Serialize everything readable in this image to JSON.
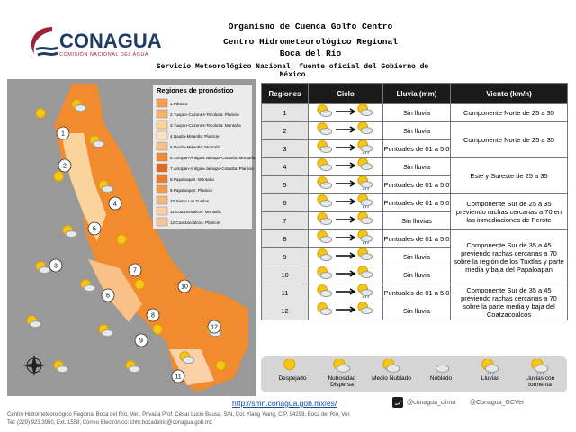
{
  "header": {
    "logo": "CONAGUA",
    "logo_subtitle": "COMISIÓN NACIONAL DEL AGUA",
    "org": "Organismo de Cuenca Golfo Centro",
    "center": "Centro Hidrometeorológico Regional",
    "place": "Boca del Río",
    "service": "Servicio Meteorológico Nacional, fuente oficial del Gobierno de México"
  },
  "map": {
    "legend_title": "Regiones de pronóstico",
    "legend": [
      {
        "label": "1.Pánuco",
        "color": "#f6a04d"
      },
      {
        "label": "2.Tuxpan-Cazones-Tecolutla: Planicie",
        "color": "#f8b36a"
      },
      {
        "label": "3.Tuxpan-Cazones-Tecolutla: Montaña",
        "color": "#fbd39c"
      },
      {
        "label": "4.Nautla-Misantla: Planicie",
        "color": "#fde3c0"
      },
      {
        "label": "5.Nautla-Misantla: Montaña",
        "color": "#f9c088"
      },
      {
        "label": "6.Actopan-Antigua-Jamapa-Cotaxtla: Montaña",
        "color": "#f28a2e"
      },
      {
        "label": "7.Actopan-Antigua-Jamapa-Cotaxtla: Planicie",
        "color": "#e8661c"
      },
      {
        "label": "8.Papaloapan: Montaña",
        "color": "#f07d2a"
      },
      {
        "label": "9.Papaloapan: Planicie",
        "color": "#f39a4a"
      },
      {
        "label": "10.Sierra Los Tuxtlas",
        "color": "#f6b77e"
      },
      {
        "label": "11.Coatzacoalcos: Montaña",
        "color": "#fcd0a8"
      },
      {
        "label": "12.Coatzacoalcos: Planicie",
        "color": "#fbc49a"
      }
    ],
    "markers": [
      "1",
      "2",
      "3",
      "4",
      "5",
      "6",
      "7",
      "8",
      "9",
      "10",
      "11",
      "12"
    ]
  },
  "table": {
    "headers": [
      "Regiones",
      "Cielo",
      "Lluvia (mm)",
      "Viento (km/h)"
    ],
    "rows": [
      [
        "1",
        "Sin lluvia",
        "Componente Norte de 25 a 35"
      ],
      [
        "2",
        "Sin lluvia",
        "Componente Norte de 25 a 35"
      ],
      [
        "3",
        "Puntuales de 01 a 5.0",
        null
      ],
      [
        "4",
        "Sin lluvia",
        "Este y Sureste de 25 a 35"
      ],
      [
        "5",
        "Puntuales de 01 a 5.0",
        null
      ],
      [
        "6",
        "Puntuales de 01 a 5.0",
        "Componente Sur de 25 a 35 previendo rachas cercanas a 70 en las inmediaciones de Perote"
      ],
      [
        "7",
        "Sin lluvias",
        null
      ],
      [
        "8",
        "Puntuales de 01 a 5.0",
        "Componente Sur de 35 a 45 previendo rachas cercanas a 70 sobre la región de los Tuxtlas y parte media y baja del Papaloapan"
      ],
      [
        "9",
        "Sin lluvia",
        null
      ],
      [
        "10",
        "Sin lluvia",
        null
      ],
      [
        "11",
        "Puntuales de 01 a 5.0",
        "Componente Sur de 35 a 45 previendo rachas cercanas a 70 sobre la parte media y baja del Coatzacoalcos"
      ],
      [
        "12",
        "Sin lluvia",
        null
      ]
    ]
  },
  "sky_legend": [
    "Despejado",
    "Nubosidad Dispersa",
    "Medio Nublado",
    "Nublado",
    "Lluvias",
    "Lluvias con tormenta"
  ],
  "footer": {
    "url": "http://smn.conagua.gob.mx/es/",
    "twitter_1": "@conagua_clima",
    "twitter_2": "@Conagua_GCVer",
    "address": "Centro Hidrometeorológico Regional Boca del Río, Ver., Privada Prof. César Lucio Bausa, S/N, Col. Yiang Yiang, C.P. 94298, Boca del Río, Ver.",
    "contact": "Tel: (229) 923.3950, Ext. 1558, Correo Electrónico: chhr.bocadelrio@conagua.gob.mx"
  }
}
